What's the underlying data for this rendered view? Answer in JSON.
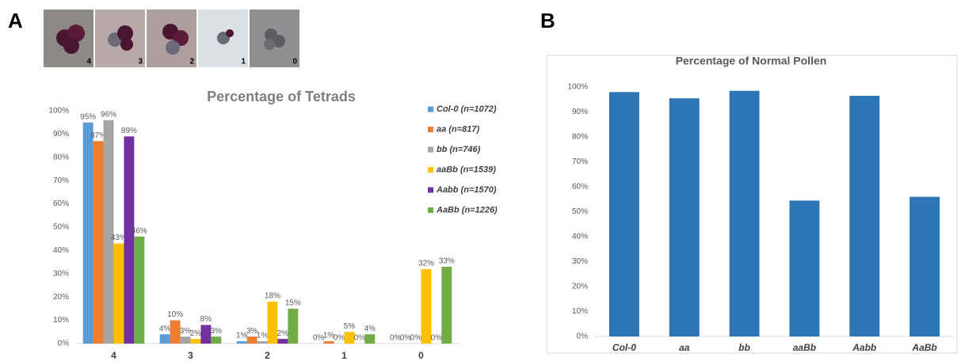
{
  "panels": [
    {
      "label": "A",
      "thumbnail_labels": [
        "4",
        "3",
        "2",
        "1",
        "0"
      ]
    },
    {
      "label": "B"
    }
  ],
  "chart_data": [
    {
      "type": "bar",
      "title": "Percentage of Tetrads",
      "categories": [
        "4",
        "3",
        "2",
        "1",
        "0"
      ],
      "series": [
        {
          "name": "Col-0 (n=1072)",
          "color": "#5b9bd5",
          "values": [
            95,
            4,
            1,
            0,
            0
          ],
          "value_labels": [
            "95%",
            "4%",
            "1%",
            "0%",
            "0%"
          ]
        },
        {
          "name": "aa (n=817)",
          "color": "#ed7d31",
          "values": [
            87,
            10,
            3,
            1,
            0
          ],
          "value_labels": [
            "87%",
            "10%",
            "3%",
            "1%",
            "0%"
          ]
        },
        {
          "name": "bb (n=746)",
          "color": "#a5a5a5",
          "values": [
            96,
            3,
            1,
            0,
            0
          ],
          "value_labels": [
            "96%",
            "3%",
            "1%",
            "0%",
            "0%"
          ]
        },
        {
          "name": "aaBb (n=1539)",
          "color": "#ffc000",
          "values": [
            43,
            2,
            18,
            5,
            32
          ],
          "value_labels": [
            "43%",
            "2%",
            "18%",
            "5%",
            "32%"
          ]
        },
        {
          "name": "Aabb (n=1570)",
          "color": "#7030a0",
          "values": [
            89,
            8,
            2,
            0,
            0
          ],
          "value_labels": [
            "89%",
            "8%",
            "2%",
            "0%",
            "0%"
          ]
        },
        {
          "name": "AaBb (n=1226)",
          "color": "#70ad47",
          "values": [
            46,
            3,
            15,
            4,
            33
          ],
          "value_labels": [
            "46%",
            "3%",
            "15%",
            "4%",
            "33%"
          ]
        }
      ],
      "ylim": [
        0,
        100
      ],
      "yticks": [
        {
          "value": 0,
          "label": "0%"
        },
        {
          "value": 10,
          "label": "10%"
        },
        {
          "value": 20,
          "label": "20%"
        },
        {
          "value": 30,
          "label": "30%"
        },
        {
          "value": 40,
          "label": "40%"
        },
        {
          "value": 50,
          "label": "50%"
        },
        {
          "value": 60,
          "label": "60%"
        },
        {
          "value": 70,
          "label": "70%"
        },
        {
          "value": 80,
          "label": "80%"
        },
        {
          "value": 90,
          "label": "90%"
        },
        {
          "value": 100,
          "label": "100%"
        }
      ],
      "grid": false,
      "legend": "right"
    },
    {
      "type": "bar",
      "title": "Percentage of Normal Pollen",
      "categories": [
        "Col-0",
        "aa",
        "bb",
        "aaBb",
        "Aabb",
        "AaBb"
      ],
      "values": [
        98,
        95.5,
        98.5,
        54.5,
        96.5,
        56
      ],
      "color": "#2e75b6",
      "ylim": [
        0,
        100
      ],
      "yticks": [
        {
          "value": 0,
          "label": "0%"
        },
        {
          "value": 10,
          "label": "10%"
        },
        {
          "value": 20,
          "label": "20%"
        },
        {
          "value": 30,
          "label": "30%"
        },
        {
          "value": 40,
          "label": "40%"
        },
        {
          "value": 50,
          "label": "50%"
        },
        {
          "value": 60,
          "label": "60%"
        },
        {
          "value": 70,
          "label": "70%"
        },
        {
          "value": 80,
          "label": "80%"
        },
        {
          "value": 90,
          "label": "90%"
        },
        {
          "value": 100,
          "label": "100%"
        }
      ],
      "grid": false
    }
  ]
}
